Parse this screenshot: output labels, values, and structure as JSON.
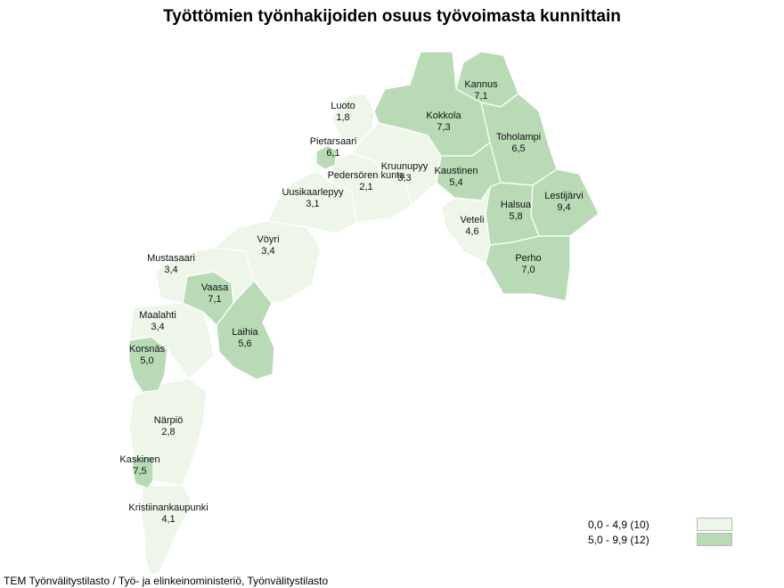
{
  "title": "Työttömien työnhakijoiden osuus työvoimasta kunnittain",
  "source": "TEM Työnvälitystilasto / Työ- ja elinkeinoministeriö, Työnvälitystilasto",
  "colors": {
    "low": "#eef6ea",
    "high": "#b8dbb6",
    "border": "#ffffff"
  },
  "legend": [
    {
      "label": "0,0 - 4,9 (10)",
      "class": "low"
    },
    {
      "label": "5,0 - 9,9 (12)",
      "class": "high"
    }
  ],
  "municipalities": [
    {
      "name": "Luoto",
      "value": "1,8",
      "class": "low"
    },
    {
      "name": "Pietarsaari",
      "value": "6,1",
      "class": "high"
    },
    {
      "name": "Pedersören kunta",
      "value": "2,1",
      "class": "low"
    },
    {
      "name": "Kruunupyy",
      "value": "3,3",
      "class": "low"
    },
    {
      "name": "Uusikaarlepyy",
      "value": "3,1",
      "class": "low"
    },
    {
      "name": "Kannus",
      "value": "7,1",
      "class": "high"
    },
    {
      "name": "Kokkola",
      "value": "7,3",
      "class": "high"
    },
    {
      "name": "Toholampi",
      "value": "6,5",
      "class": "high"
    },
    {
      "name": "Kaustinen",
      "value": "5,4",
      "class": "high"
    },
    {
      "name": "Lestijärvi",
      "value": "9,4",
      "class": "high"
    },
    {
      "name": "Halsua",
      "value": "5,8",
      "class": "high"
    },
    {
      "name": "Veteli",
      "value": "4,6",
      "class": "low"
    },
    {
      "name": "Perho",
      "value": "7,0",
      "class": "high"
    },
    {
      "name": "Vöyri",
      "value": "3,4",
      "class": "low"
    },
    {
      "name": "Mustasaari",
      "value": "3,4",
      "class": "low"
    },
    {
      "name": "Vaasa",
      "value": "7,1",
      "class": "high"
    },
    {
      "name": "Maalahti",
      "value": "3,4",
      "class": "low"
    },
    {
      "name": "Laihia",
      "value": "5,6",
      "class": "high"
    },
    {
      "name": "Korsnäs",
      "value": "5,0",
      "class": "high"
    },
    {
      "name": "Närpiö",
      "value": "2,8",
      "class": "low"
    },
    {
      "name": "Kaskinen",
      "value": "7,5",
      "class": "high"
    },
    {
      "name": "Kristiinankaupunki",
      "value": "4,1",
      "class": "low"
    }
  ]
}
